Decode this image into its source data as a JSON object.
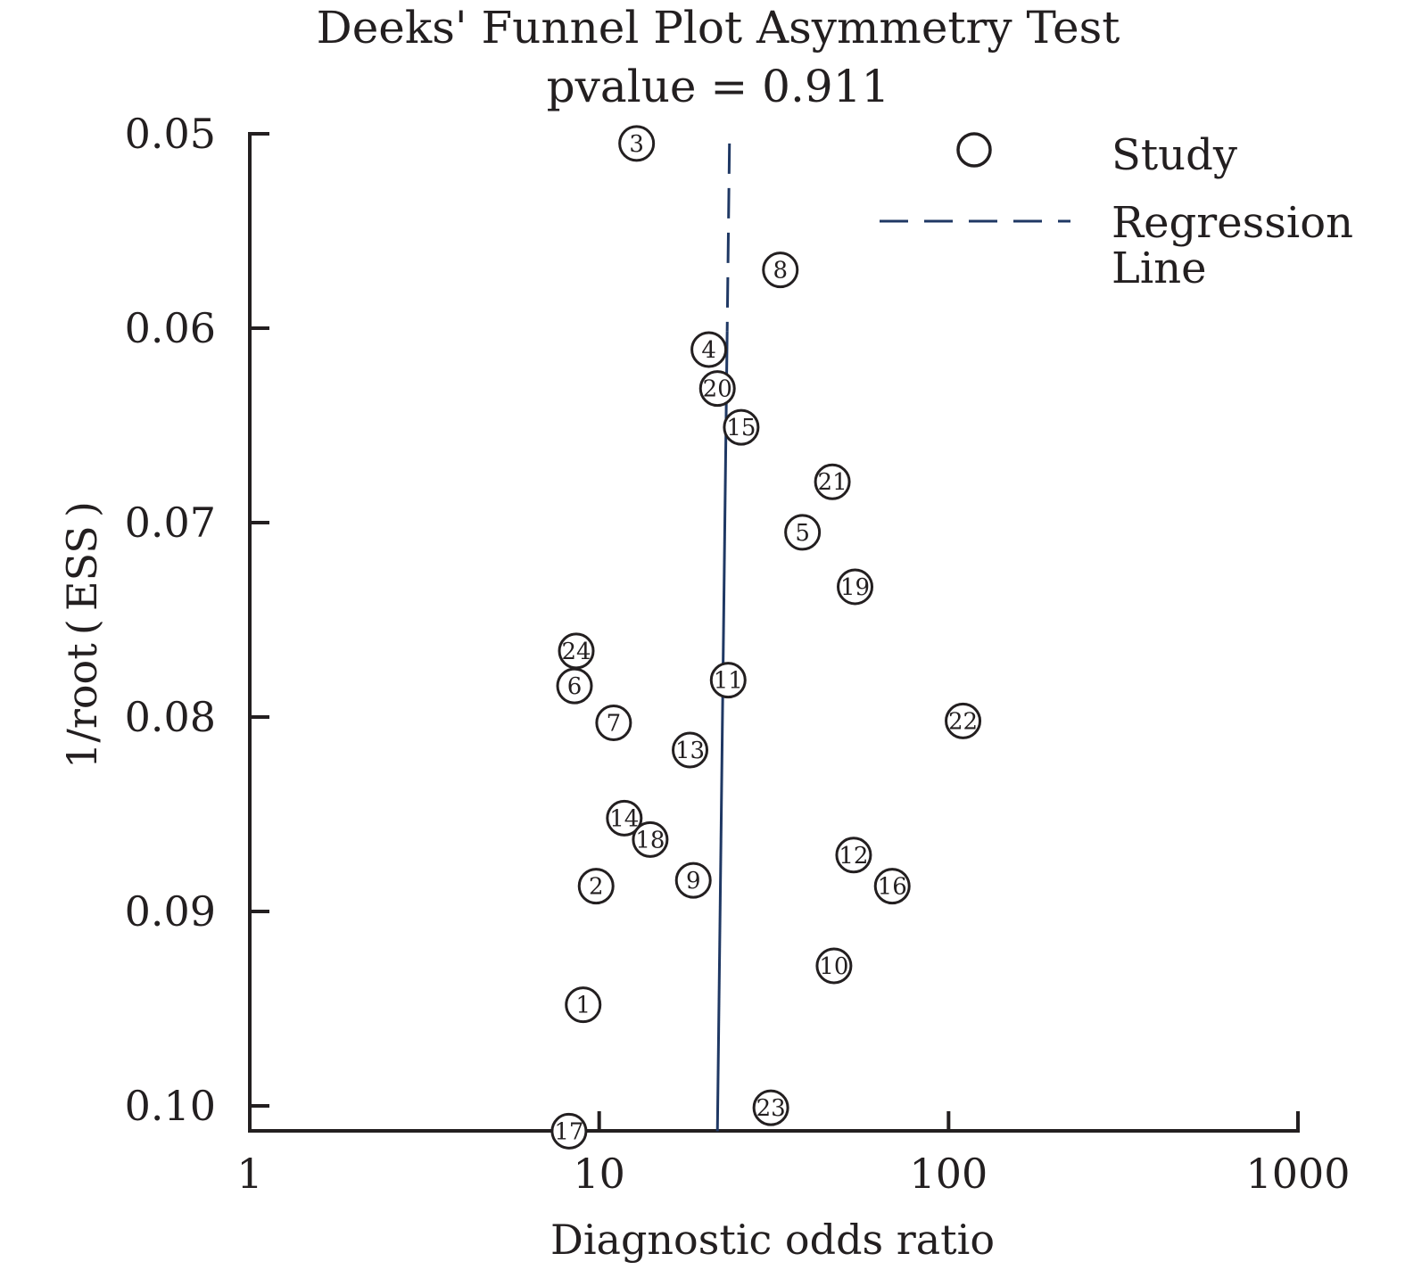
{
  "chart_data": {
    "type": "scatter",
    "title": "Deeks' Funnel Plot Asymmetry Test",
    "subtitle": "pvalue = 0.911",
    "xlabel": "Diagnostic odds ratio",
    "ylabel": "1/root ( ESS )",
    "x_scale": "log",
    "xlim": [
      1,
      1000
    ],
    "ylim": [
      0.05,
      0.1013
    ],
    "y_inverted": true,
    "x_ticks": [
      1,
      10,
      100,
      1000
    ],
    "x_tick_labels": [
      "1",
      "10",
      "100",
      "1000"
    ],
    "y_ticks": [
      0.05,
      0.06,
      0.07,
      0.08,
      0.09,
      0.1
    ],
    "y_tick_labels": [
      "0.05",
      "0.06",
      "0.07",
      "0.08",
      "0.09",
      "0.10"
    ],
    "legend": {
      "position": "top-right",
      "study_label": "Study",
      "regression_label": [
        "Regression",
        "Line"
      ]
    },
    "colors": {
      "axis": "#231f20",
      "regression": "#1f3864",
      "marker": "#231f20"
    },
    "series": [
      {
        "name": "Study",
        "points": [
          {
            "label": "1",
            "x": 9.0,
            "y": 0.0948
          },
          {
            "label": "2",
            "x": 9.8,
            "y": 0.0887
          },
          {
            "label": "3",
            "x": 12.8,
            "y": 0.0505
          },
          {
            "label": "4",
            "x": 20.6,
            "y": 0.0611
          },
          {
            "label": "5",
            "x": 38.2,
            "y": 0.0705
          },
          {
            "label": "6",
            "x": 8.5,
            "y": 0.0784
          },
          {
            "label": "7",
            "x": 11.0,
            "y": 0.0803
          },
          {
            "label": "8",
            "x": 33.0,
            "y": 0.057
          },
          {
            "label": "9",
            "x": 18.6,
            "y": 0.0884
          },
          {
            "label": "10",
            "x": 47.0,
            "y": 0.0928
          },
          {
            "label": "11",
            "x": 23.4,
            "y": 0.0781
          },
          {
            "label": "12",
            "x": 53.5,
            "y": 0.0871
          },
          {
            "label": "13",
            "x": 18.2,
            "y": 0.0817
          },
          {
            "label": "14",
            "x": 11.8,
            "y": 0.0852
          },
          {
            "label": "15",
            "x": 25.5,
            "y": 0.0651
          },
          {
            "label": "16",
            "x": 69.0,
            "y": 0.0887
          },
          {
            "label": "17",
            "x": 8.2,
            "y": 0.1013
          },
          {
            "label": "18",
            "x": 14.0,
            "y": 0.0863
          },
          {
            "label": "19",
            "x": 54.0,
            "y": 0.0733
          },
          {
            "label": "20",
            "x": 21.8,
            "y": 0.0631
          },
          {
            "label": "21",
            "x": 46.5,
            "y": 0.0679
          },
          {
            "label": "22",
            "x": 110.0,
            "y": 0.0802
          },
          {
            "label": "23",
            "x": 31.0,
            "y": 0.1001
          },
          {
            "label": "24",
            "x": 8.6,
            "y": 0.0766
          }
        ]
      },
      {
        "name": "Regression Line",
        "style": "dashed-then-solid",
        "line": [
          {
            "x": 23.6,
            "y": 0.0505
          },
          {
            "x": 21.8,
            "y": 0.1013
          }
        ]
      }
    ]
  }
}
